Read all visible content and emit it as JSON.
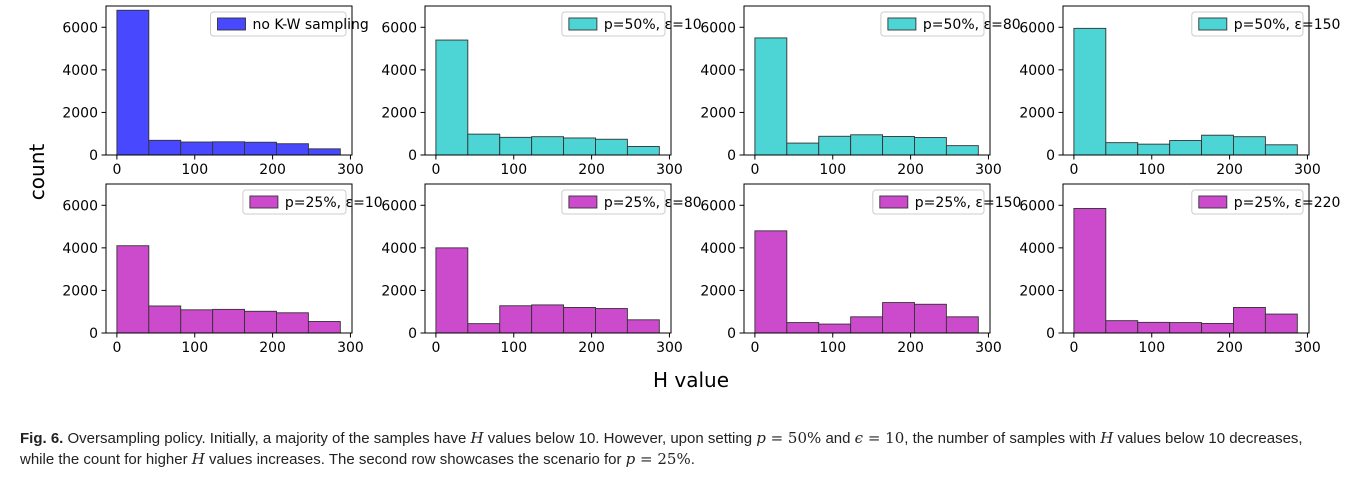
{
  "figure": {
    "ylabel": "count",
    "xlabel": "H value"
  },
  "caption": {
    "label": "Fig. 6.",
    "t1": " Oversampling policy. Initially, a majority of the samples have ",
    "m1": "H",
    "t2": " values below 10. However, upon setting ",
    "m2": "p",
    "m3": " = 50%",
    "t3": " and ",
    "m4": "ϵ",
    "m5": " = 10",
    "t4": ", the number of samples with ",
    "m6": "H",
    "t5": " values below 10 decreases, while the count for higher ",
    "m7": "H",
    "t6": " values increases. The second row showcases the scenario for ",
    "m8": "p",
    "m9": " = 25%",
    "t7": "."
  },
  "chart_data": [
    {
      "type": "bar",
      "title": "",
      "legend": "no K-W sampling",
      "legend_loc": "upper right",
      "color": "#4848FF",
      "bin_edges": [
        0,
        41,
        82,
        123,
        164,
        205,
        246,
        287
      ],
      "values": [
        6800,
        690,
        610,
        620,
        600,
        530,
        290
      ],
      "xticks": [
        0,
        100,
        200,
        300
      ],
      "yticks": [
        0,
        2000,
        4000,
        6000
      ],
      "xlim": [
        -14,
        302
      ],
      "ylim": [
        0,
        7000
      ]
    },
    {
      "type": "bar",
      "title": "",
      "legend": "p=50%, ε=10",
      "legend_loc": "upper right",
      "color": "#4DD4D4",
      "bin_edges": [
        0,
        41,
        82,
        123,
        164,
        205,
        246,
        287
      ],
      "values": [
        5400,
        980,
        830,
        860,
        800,
        740,
        400
      ],
      "xticks": [
        0,
        100,
        200,
        300
      ],
      "yticks": [
        0,
        2000,
        4000,
        6000
      ],
      "xlim": [
        -14,
        302
      ],
      "ylim": [
        0,
        7000
      ]
    },
    {
      "type": "bar",
      "title": "",
      "legend": "p=50%, ε=80",
      "legend_loc": "upper right",
      "color": "#4DD4D4",
      "bin_edges": [
        0,
        41,
        82,
        123,
        164,
        205,
        246,
        287
      ],
      "values": [
        5500,
        560,
        880,
        950,
        870,
        820,
        440
      ],
      "xticks": [
        0,
        100,
        200,
        300
      ],
      "yticks": [
        0,
        2000,
        4000,
        6000
      ],
      "xlim": [
        -14,
        302
      ],
      "ylim": [
        0,
        7000
      ]
    },
    {
      "type": "bar",
      "title": "",
      "legend": "p=50%, ε=150",
      "legend_loc": "upper right",
      "color": "#4DD4D4",
      "bin_edges": [
        0,
        41,
        82,
        123,
        164,
        205,
        246,
        287
      ],
      "values": [
        5950,
        580,
        510,
        680,
        930,
        860,
        480
      ],
      "xticks": [
        0,
        100,
        200,
        300
      ],
      "yticks": [
        0,
        2000,
        4000,
        6000
      ],
      "xlim": [
        -14,
        302
      ],
      "ylim": [
        0,
        7000
      ]
    },
    {
      "type": "bar",
      "title": "",
      "legend": "p=25%, ε=10",
      "legend_loc": "upper right",
      "color": "#CC4ACC",
      "bin_edges": [
        0,
        41,
        82,
        123,
        164,
        205,
        246,
        287
      ],
      "values": [
        4100,
        1270,
        1090,
        1110,
        1020,
        950,
        540
      ],
      "xticks": [
        0,
        100,
        200,
        300
      ],
      "yticks": [
        0,
        2000,
        4000,
        6000
      ],
      "xlim": [
        -14,
        302
      ],
      "ylim": [
        0,
        7000
      ]
    },
    {
      "type": "bar",
      "title": "",
      "legend": "p=25%, ε=80",
      "legend_loc": "upper right",
      "color": "#CC4ACC",
      "bin_edges": [
        0,
        41,
        82,
        123,
        164,
        205,
        246,
        287
      ],
      "values": [
        4000,
        440,
        1280,
        1320,
        1200,
        1150,
        620
      ],
      "xticks": [
        0,
        100,
        200,
        300
      ],
      "yticks": [
        0,
        2000,
        4000,
        6000
      ],
      "xlim": [
        -14,
        302
      ],
      "ylim": [
        0,
        7000
      ]
    },
    {
      "type": "bar",
      "title": "",
      "legend": "p=25%, ε=150",
      "legend_loc": "upper right",
      "color": "#CC4ACC",
      "bin_edges": [
        0,
        41,
        82,
        123,
        164,
        205,
        246,
        287
      ],
      "values": [
        4800,
        490,
        420,
        760,
        1430,
        1350,
        760
      ],
      "xticks": [
        0,
        100,
        200,
        300
      ],
      "yticks": [
        0,
        2000,
        4000,
        6000
      ],
      "xlim": [
        -14,
        302
      ],
      "ylim": [
        0,
        7000
      ]
    },
    {
      "type": "bar",
      "title": "",
      "legend": "p=25%, ε=220",
      "legend_loc": "upper right",
      "color": "#CC4ACC",
      "bin_edges": [
        0,
        41,
        82,
        123,
        164,
        205,
        246,
        287
      ],
      "values": [
        5850,
        580,
        500,
        490,
        450,
        1200,
        890
      ],
      "xticks": [
        0,
        100,
        200,
        300
      ],
      "yticks": [
        0,
        2000,
        4000,
        6000
      ],
      "xlim": [
        -14,
        302
      ],
      "ylim": [
        0,
        7000
      ]
    }
  ]
}
